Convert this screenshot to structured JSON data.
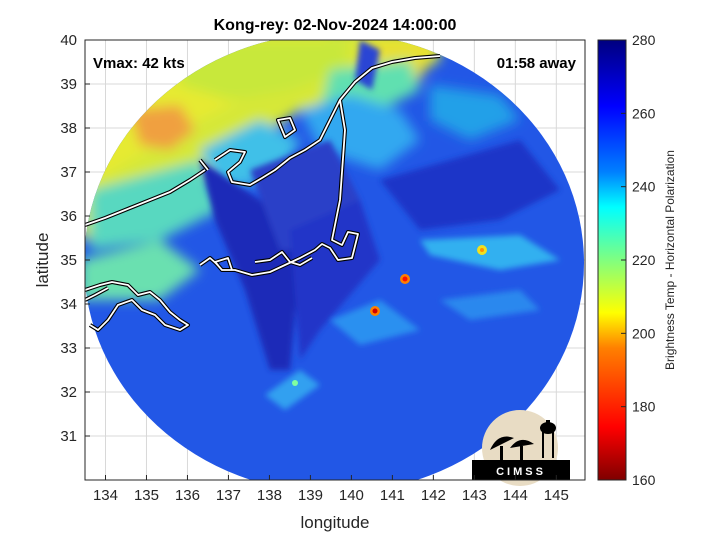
{
  "title": "Kong-rey: 02-Nov-2024 14:00:00",
  "annotations": {
    "vmax": "Vmax: 42 kts",
    "time_away": "01:58 away"
  },
  "axes": {
    "xlabel": "longitude",
    "ylabel": "latitude",
    "xlim": [
      133.5,
      145.7
    ],
    "ylim": [
      30,
      40
    ],
    "xticks": [
      "134",
      "135",
      "136",
      "137",
      "138",
      "139",
      "140",
      "141",
      "142",
      "143",
      "144",
      "145"
    ],
    "yticks": [
      "31",
      "32",
      "33",
      "34",
      "35",
      "36",
      "37",
      "38",
      "39",
      "40"
    ],
    "grid": true
  },
  "colorbar": {
    "label": "Brightness Temp - Horizontal Polarization",
    "ticks": [
      "160",
      "180",
      "200",
      "220",
      "240",
      "260",
      "280"
    ],
    "range": [
      160,
      280
    ],
    "colormap": "jet"
  },
  "logo": {
    "text": "CIMSS"
  },
  "colors": {
    "coastline": "#ffffff",
    "coast_outline": "#000000",
    "grid": "#d8d8d8",
    "frame": "#262626"
  }
}
